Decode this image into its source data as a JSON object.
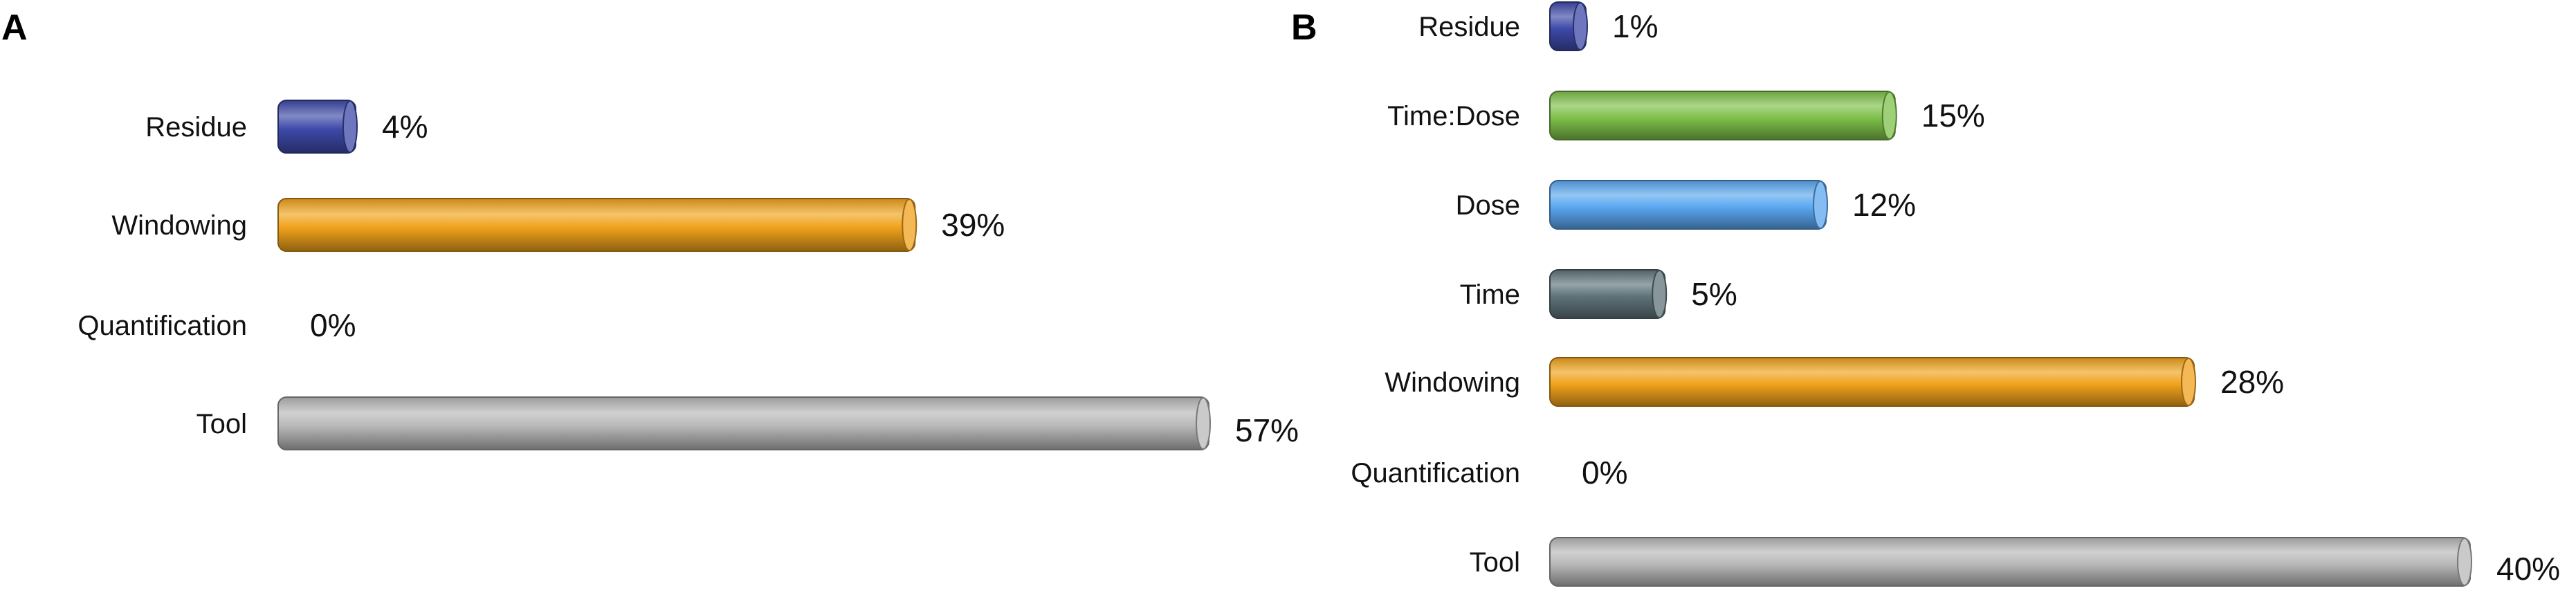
{
  "chart_data": [
    {
      "panel": "A",
      "type": "bar",
      "orientation": "horizontal",
      "categories": [
        "Residue",
        "Windowing",
        "Quantification",
        "Tool"
      ],
      "values": [
        4,
        39,
        0,
        57
      ],
      "value_labels": [
        "4%",
        "39%",
        "0%",
        "57%"
      ],
      "colors": [
        "#3d4aa8",
        "#f0a21c",
        "#cccccc",
        "#b8b8b8"
      ],
      "xlim": [
        0,
        57
      ],
      "grid": false,
      "legend": "none"
    },
    {
      "panel": "B",
      "type": "bar",
      "orientation": "horizontal",
      "categories": [
        "Residue",
        "Time:Dose",
        "Dose",
        "Time",
        "Windowing",
        "Quantification",
        "Tool"
      ],
      "values": [
        1,
        15,
        12,
        5,
        28,
        0,
        40
      ],
      "value_labels": [
        "1%",
        "15%",
        "12%",
        "5%",
        "28%",
        "0%",
        "40%"
      ],
      "colors": [
        "#3d4aa8",
        "#7ec04a",
        "#5aa7f0",
        "#5e7379",
        "#f0a21c",
        "#cccccc",
        "#b8b8b8"
      ],
      "xlim": [
        0,
        40
      ],
      "grid": false,
      "legend": "none"
    }
  ]
}
